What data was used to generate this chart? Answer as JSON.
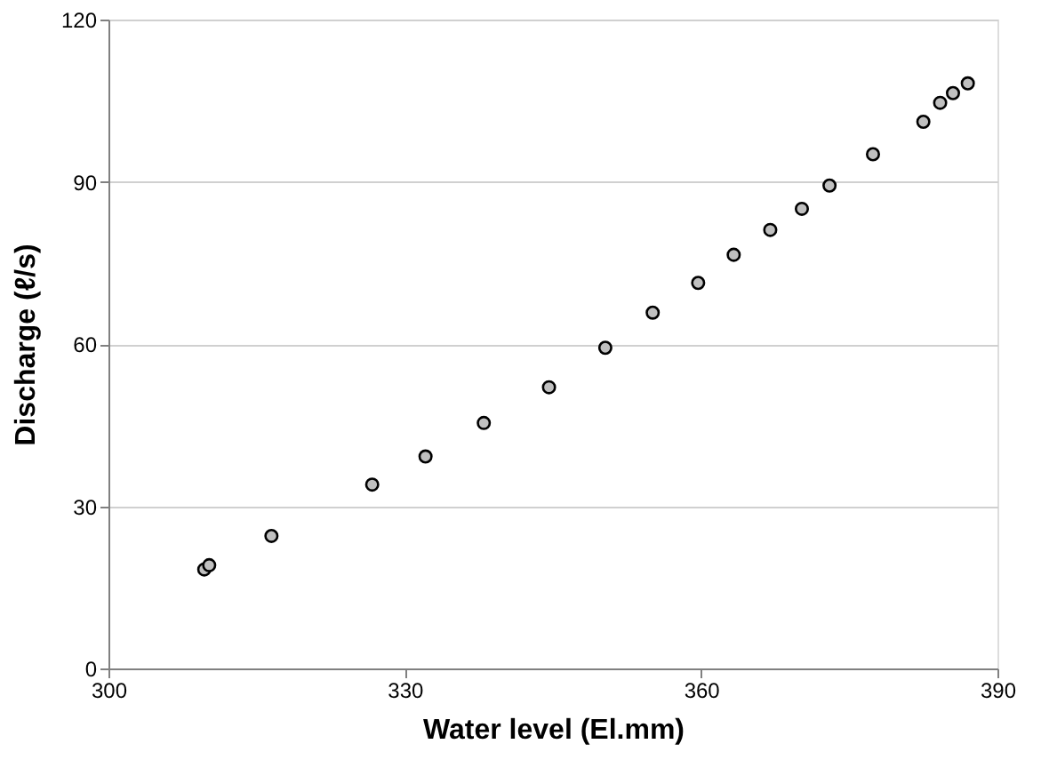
{
  "chart_data": {
    "type": "scatter",
    "xlabel": "Water level (El.mm)",
    "ylabel": "Discharge (ℓ/s)",
    "x": [
      309.7,
      310.2,
      316.5,
      326.7,
      332.1,
      338.0,
      344.6,
      350.3,
      355.1,
      359.7,
      363.3,
      367.0,
      370.2,
      373.0,
      377.4,
      382.5,
      384.2,
      385.5,
      387.0
    ],
    "series": [
      {
        "color": "#c0c0c0",
        "values": [
          18.3,
          19.1,
          24.5,
          34.0,
          39.2,
          45.4,
          52.0,
          59.3,
          65.8,
          71.3,
          76.5,
          81.1,
          85.0,
          89.3,
          95.1,
          101.1,
          104.6,
          106.4,
          108.2
        ]
      }
    ],
    "xlim": [
      300,
      390
    ],
    "xticks": [
      300,
      330,
      360,
      390
    ],
    "ylim": [
      0,
      120
    ],
    "yticks": [
      0,
      30,
      60,
      90,
      120
    ],
    "grid": "y",
    "marker": "circle",
    "legend": false
  }
}
